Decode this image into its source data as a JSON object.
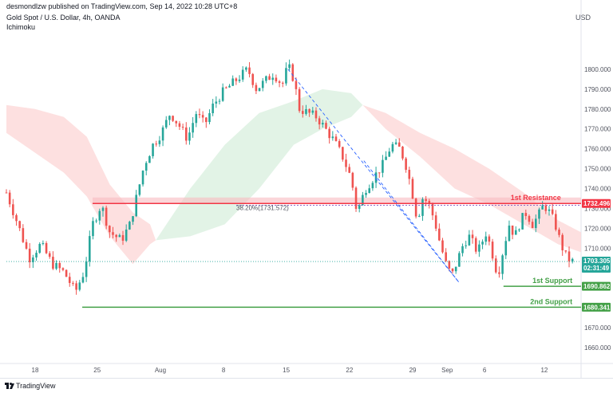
{
  "header": {
    "published": "desmondlzw published on TradingView.com, Sep 14, 2022 10:28 UTC+8",
    "symbol": "Gold Spot / U.S. Dollar, 4h, OANDA",
    "indicator": "Ichimoku"
  },
  "footer": {
    "brand": "TradingView"
  },
  "colors": {
    "up": "#26a69a",
    "down": "#ef5350",
    "resistance": "#f23645",
    "support": "#43a047",
    "kumo_bear": "#fcd5d5",
    "kumo_bull": "#d8efde",
    "trend": "#2962ff",
    "current": "#26a69a",
    "fib": "#7e57c2"
  },
  "chart_data": {
    "type": "candlestick",
    "currency": "USD",
    "ylim": [
      1652,
      1818
    ],
    "y_ticks": [
      1660,
      1670,
      1680,
      1690,
      1700,
      1710,
      1720,
      1730,
      1740,
      1750,
      1760,
      1770,
      1780,
      1790,
      1800
    ],
    "x_ticks": [
      {
        "label": "18",
        "t": 0.05
      },
      {
        "label": "25",
        "t": 0.158
      },
      {
        "label": "Aug",
        "t": 0.268
      },
      {
        "label": "8",
        "t": 0.378
      },
      {
        "label": "15",
        "t": 0.487
      },
      {
        "label": "22",
        "t": 0.597
      },
      {
        "label": "29",
        "t": 0.707
      },
      {
        "label": "Sep",
        "t": 0.767
      },
      {
        "label": "6",
        "t": 0.832
      },
      {
        "label": "12",
        "t": 0.936
      }
    ],
    "price_path": [
      [
        0.0,
        1738
      ],
      [
        0.02,
        1722
      ],
      [
        0.04,
        1705
      ],
      [
        0.06,
        1712
      ],
      [
        0.08,
        1702
      ],
      [
        0.1,
        1698
      ],
      [
        0.12,
        1688
      ],
      [
        0.135,
        1698
      ],
      [
        0.15,
        1722
      ],
      [
        0.165,
        1732
      ],
      [
        0.18,
        1718
      ],
      [
        0.2,
        1714
      ],
      [
        0.215,
        1722
      ],
      [
        0.225,
        1734
      ],
      [
        0.24,
        1752
      ],
      [
        0.255,
        1762
      ],
      [
        0.27,
        1768
      ],
      [
        0.285,
        1778
      ],
      [
        0.3,
        1772
      ],
      [
        0.315,
        1765
      ],
      [
        0.33,
        1778
      ],
      [
        0.345,
        1772
      ],
      [
        0.36,
        1782
      ],
      [
        0.375,
        1788
      ],
      [
        0.39,
        1792
      ],
      [
        0.405,
        1796
      ],
      [
        0.42,
        1800
      ],
      [
        0.435,
        1790
      ],
      [
        0.45,
        1794
      ],
      [
        0.465,
        1798
      ],
      [
        0.48,
        1792
      ],
      [
        0.49,
        1802
      ],
      [
        0.5,
        1795
      ],
      [
        0.51,
        1780
      ],
      [
        0.525,
        1778
      ],
      [
        0.54,
        1776
      ],
      [
        0.555,
        1770
      ],
      [
        0.57,
        1764
      ],
      [
        0.585,
        1756
      ],
      [
        0.6,
        1745
      ],
      [
        0.61,
        1728
      ],
      [
        0.625,
        1740
      ],
      [
        0.64,
        1746
      ],
      [
        0.655,
        1752
      ],
      [
        0.67,
        1762
      ],
      [
        0.685,
        1760
      ],
      [
        0.695,
        1752
      ],
      [
        0.705,
        1740
      ],
      [
        0.715,
        1724
      ],
      [
        0.725,
        1736
      ],
      [
        0.735,
        1732
      ],
      [
        0.745,
        1724
      ],
      [
        0.755,
        1712
      ],
      [
        0.765,
        1702
      ],
      [
        0.775,
        1696
      ],
      [
        0.785,
        1704
      ],
      [
        0.795,
        1712
      ],
      [
        0.805,
        1716
      ],
      [
        0.82,
        1708
      ],
      [
        0.835,
        1718
      ],
      [
        0.845,
        1708
      ],
      [
        0.855,
        1696
      ],
      [
        0.865,
        1710
      ],
      [
        0.875,
        1722
      ],
      [
        0.885,
        1716
      ],
      [
        0.895,
        1724
      ],
      [
        0.905,
        1728
      ],
      [
        0.915,
        1722
      ],
      [
        0.925,
        1726
      ],
      [
        0.935,
        1732
      ],
      [
        0.945,
        1728
      ],
      [
        0.955,
        1722
      ],
      [
        0.965,
        1712
      ],
      [
        0.975,
        1705
      ],
      [
        0.985,
        1703.3
      ]
    ],
    "kumo_bear_top": [
      [
        0.0,
        1782
      ],
      [
        0.05,
        1780
      ],
      [
        0.1,
        1776
      ],
      [
        0.14,
        1766
      ],
      [
        0.18,
        1742
      ],
      [
        0.22,
        1728
      ],
      [
        0.25,
        1722
      ],
      [
        0.26,
        1714
      ]
    ],
    "kumo_bear_bottom": [
      [
        0.0,
        1768
      ],
      [
        0.05,
        1758
      ],
      [
        0.1,
        1748
      ],
      [
        0.14,
        1736
      ],
      [
        0.18,
        1716
      ],
      [
        0.22,
        1702
      ],
      [
        0.25,
        1712
      ],
      [
        0.26,
        1714
      ]
    ],
    "kumo_bull_top": [
      [
        0.26,
        1714
      ],
      [
        0.32,
        1740
      ],
      [
        0.38,
        1762
      ],
      [
        0.44,
        1778
      ],
      [
        0.5,
        1784
      ],
      [
        0.55,
        1790
      ],
      [
        0.6,
        1788
      ],
      [
        0.62,
        1782
      ]
    ],
    "kumo_bull_bottom": [
      [
        0.26,
        1714
      ],
      [
        0.32,
        1716
      ],
      [
        0.38,
        1722
      ],
      [
        0.44,
        1740
      ],
      [
        0.5,
        1762
      ],
      [
        0.55,
        1770
      ],
      [
        0.6,
        1776
      ],
      [
        0.62,
        1782
      ]
    ],
    "kumo_bear2_top": [
      [
        0.62,
        1782
      ],
      [
        0.66,
        1778
      ],
      [
        0.72,
        1768
      ],
      [
        0.78,
        1760
      ],
      [
        0.84,
        1750
      ],
      [
        0.9,
        1738
      ],
      [
        0.96,
        1724
      ],
      [
        1.0,
        1718
      ]
    ],
    "kumo_bear2_bottom": [
      [
        0.62,
        1782
      ],
      [
        0.66,
        1770
      ],
      [
        0.72,
        1756
      ],
      [
        0.78,
        1740
      ],
      [
        0.84,
        1732
      ],
      [
        0.9,
        1722
      ],
      [
        0.96,
        1712
      ],
      [
        1.0,
        1708
      ]
    ],
    "resistance": {
      "label": "1st Resistance",
      "value": 1732.496,
      "tag": "1732.496",
      "zone_top": 1735.5
    },
    "support1": {
      "label": "1st Support",
      "value": 1690.862,
      "tag": "1690.862",
      "x_start": 0.865
    },
    "support2": {
      "label": "2nd Support",
      "value": 1680.341,
      "tag": "1680.341",
      "x_start": 0.132
    },
    "current": {
      "value": 1703.305,
      "tag": "1703.305",
      "countdown": "02:31:49"
    },
    "fib_label": "38.20%(1731.572)",
    "fib_value": 1731.572,
    "trendline": {
      "x1": 0.49,
      "y1": 1800,
      "x2": 0.787,
      "y2": 1693
    },
    "trendline2": {
      "x1": 0.622,
      "y1": 1754,
      "x2": 0.787,
      "y2": 1693
    }
  }
}
